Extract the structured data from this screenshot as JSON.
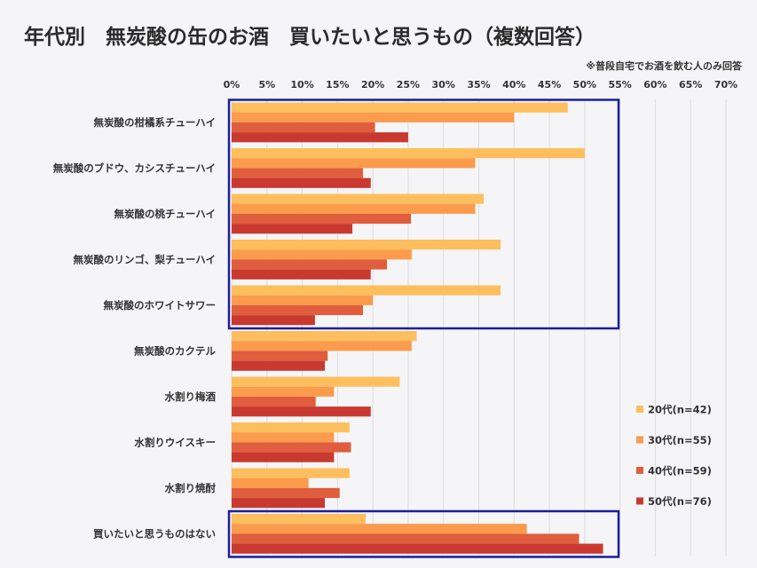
{
  "title": "年代別　無炭酸の缶のお酒　買いたいと思うもの（複数回答）",
  "note": "※普段自宅でお酒を飲む人のみ回答",
  "chart_data": {
    "type": "bar",
    "orientation": "horizontal",
    "title": "年代別　無炭酸の缶のお酒　買いたいと思うもの（複数回答）",
    "subtitle": "※普段自宅でお酒を飲む人のみ回答",
    "xlabel": "",
    "ylabel": "",
    "xlim": [
      0,
      70
    ],
    "tick_step": 5,
    "tick_suffix": "%",
    "grid": true,
    "legend_position": "right",
    "categories": [
      "無炭酸の柑橘系チューハイ",
      "無炭酸のブドウ、カシスチューハイ",
      "無炭酸の桃チューハイ",
      "無炭酸のリンゴ、梨チューハイ",
      "無炭酸のホワイトサワー",
      "無炭酸のカクテル",
      "水割り梅酒",
      "水割りウイスキー",
      "水割り焼酎",
      "買いたいと思うものはない"
    ],
    "series": [
      {
        "name": "20代(n=42)",
        "color": "#fdbf5e",
        "values": [
          47.6,
          50.0,
          35.7,
          38.1,
          38.1,
          26.2,
          23.8,
          16.7,
          16.7,
          19.0
        ]
      },
      {
        "name": "30代(n=55)",
        "color": "#fb9b4c",
        "values": [
          40.0,
          34.5,
          34.5,
          25.5,
          20.0,
          25.5,
          14.5,
          14.5,
          10.9,
          41.8
        ]
      },
      {
        "name": "40代(n=59)",
        "color": "#e05d3d",
        "values": [
          20.3,
          18.6,
          25.4,
          22.0,
          18.6,
          13.6,
          11.9,
          16.9,
          15.3,
          49.2
        ]
      },
      {
        "name": "50代(n=76)",
        "color": "#c9392f",
        "values": [
          25.0,
          19.7,
          17.1,
          19.7,
          11.8,
          13.2,
          19.7,
          14.5,
          13.2,
          52.6
        ]
      }
    ],
    "highlight_groups": [
      [
        0,
        4
      ],
      [
        9,
        9
      ]
    ],
    "highlight_color": "#1a1f9c"
  }
}
